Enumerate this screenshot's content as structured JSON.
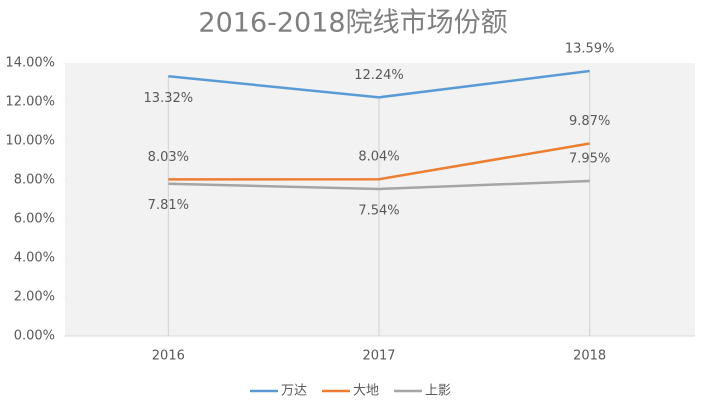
{
  "chart_data": {
    "type": "line",
    "title": "2016-2018院线市场份额",
    "categories": [
      "2016",
      "2017",
      "2018"
    ],
    "series": [
      {
        "name": "万达",
        "color": "#5b9bd5",
        "values": [
          13.32,
          12.24,
          13.59
        ],
        "value_labels": [
          "13.32%",
          "12.24%",
          "13.59%"
        ]
      },
      {
        "name": "大地",
        "color": "#ed7d31",
        "values": [
          8.03,
          8.04,
          9.87
        ],
        "value_labels": [
          "8.03%",
          "8.04%",
          "9.87%"
        ]
      },
      {
        "name": "上影",
        "color": "#a5a5a5",
        "values": [
          7.81,
          7.54,
          7.95
        ],
        "value_labels": [
          "7.81%",
          "7.54%",
          "7.95%"
        ]
      }
    ],
    "ylim": [
      0,
      14
    ],
    "yticks": [
      {
        "value": 0,
        "label": "0.00%"
      },
      {
        "value": 2,
        "label": "2.00%"
      },
      {
        "value": 4,
        "label": "4.00%"
      },
      {
        "value": 6,
        "label": "6.00%"
      },
      {
        "value": 8,
        "label": "8.00%"
      },
      {
        "value": 10,
        "label": "10.00%"
      },
      {
        "value": 12,
        "label": "12.00%"
      },
      {
        "value": 14,
        "label": "14.00%"
      }
    ],
    "legend": "bottom"
  }
}
